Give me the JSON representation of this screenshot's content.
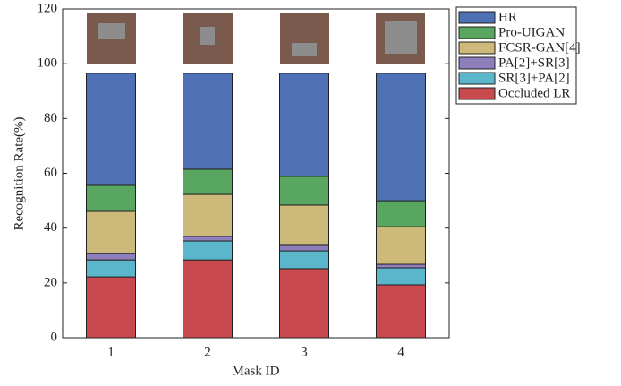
{
  "chart_data": {
    "type": "stacked-bar",
    "xlabel": "Mask ID",
    "ylabel": "Recognition Rate(%)",
    "categories": [
      "1",
      "2",
      "3",
      "4"
    ],
    "series": [
      {
        "name": "Occluded LR",
        "color": "#c84a4f",
        "values": [
          22.2,
          28.4,
          25.2,
          19.3
        ]
      },
      {
        "name": "SR[3]+PA[2]",
        "color": "#5bb6cc",
        "values": [
          6.2,
          6.9,
          6.5,
          6.2
        ]
      },
      {
        "name": "PA[2]+SR[3]",
        "color": "#8e7fbc",
        "values": [
          2.3,
          1.7,
          2.0,
          1.3
        ]
      },
      {
        "name": "FCSR-GAN[4]",
        "color": "#cdb97a",
        "values": [
          15.4,
          15.3,
          14.7,
          13.7
        ]
      },
      {
        "name": "Pro-UIGAN",
        "color": "#58a660",
        "values": [
          9.5,
          9.2,
          10.5,
          9.5
        ]
      },
      {
        "name": "HR",
        "color": "#4e71b6",
        "values": [
          40.9,
          35.0,
          37.6,
          46.5
        ]
      }
    ],
    "ylim": [
      0,
      120
    ],
    "yticks": [
      0,
      20,
      40,
      60,
      80,
      100,
      120
    ]
  }
}
